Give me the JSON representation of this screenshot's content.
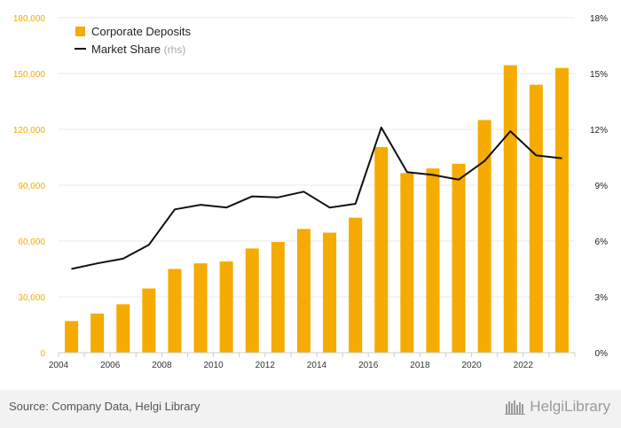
{
  "colors": {
    "bar": "#f5ab00",
    "line": "#111111",
    "left_axis_text": "#f5ab00",
    "right_axis_text": "#222222",
    "grid": "#e8e8e8",
    "legend_note": "#aaaaaa"
  },
  "footer": {
    "source": "Source: Company Data, Helgi Library",
    "brand_name": "HelgiLibrary",
    "brand_icon": "bookshelf-icon"
  },
  "chart_data": {
    "type": "bar",
    "categories": [
      "2004",
      "2005",
      "2006",
      "2007",
      "2008",
      "2009",
      "2010",
      "2011",
      "2012",
      "2013",
      "2014",
      "2015",
      "2016",
      "2017",
      "2018",
      "2019",
      "2020",
      "2021",
      "2022",
      "2023"
    ],
    "series": [
      {
        "name": "Corporate Deposits",
        "type": "bar",
        "axis": "left",
        "values": [
          17000,
          21000,
          26000,
          34500,
          45000,
          48000,
          49000,
          56000,
          59500,
          66500,
          64500,
          72500,
          110500,
          96500,
          99000,
          101500,
          125000,
          154500,
          144000,
          153000
        ]
      },
      {
        "name": "Market Share",
        "legend_note": "(rhs)",
        "type": "line",
        "axis": "right",
        "values": [
          4.5,
          4.8,
          5.05,
          5.8,
          7.7,
          7.95,
          7.8,
          8.4,
          8.35,
          8.65,
          7.8,
          8.0,
          12.1,
          9.7,
          9.55,
          9.3,
          10.3,
          11.9,
          10.6,
          10.45
        ]
      }
    ],
    "x_tick_labels": [
      "2004",
      "2006",
      "2008",
      "2010",
      "2012",
      "2014",
      "2016",
      "2018",
      "2020",
      "2022"
    ],
    "y_left": {
      "min": 0,
      "max": 180000,
      "ticks": [
        "0",
        "30,000",
        "60,000",
        "90,000",
        "120,000",
        "150,000",
        "180,000"
      ]
    },
    "y_right": {
      "min": 0,
      "max": 18,
      "ticks": [
        "0%",
        "3%",
        "6%",
        "9%",
        "12%",
        "15%",
        "18%"
      ]
    },
    "grid": true,
    "legend_position": "top-left"
  }
}
